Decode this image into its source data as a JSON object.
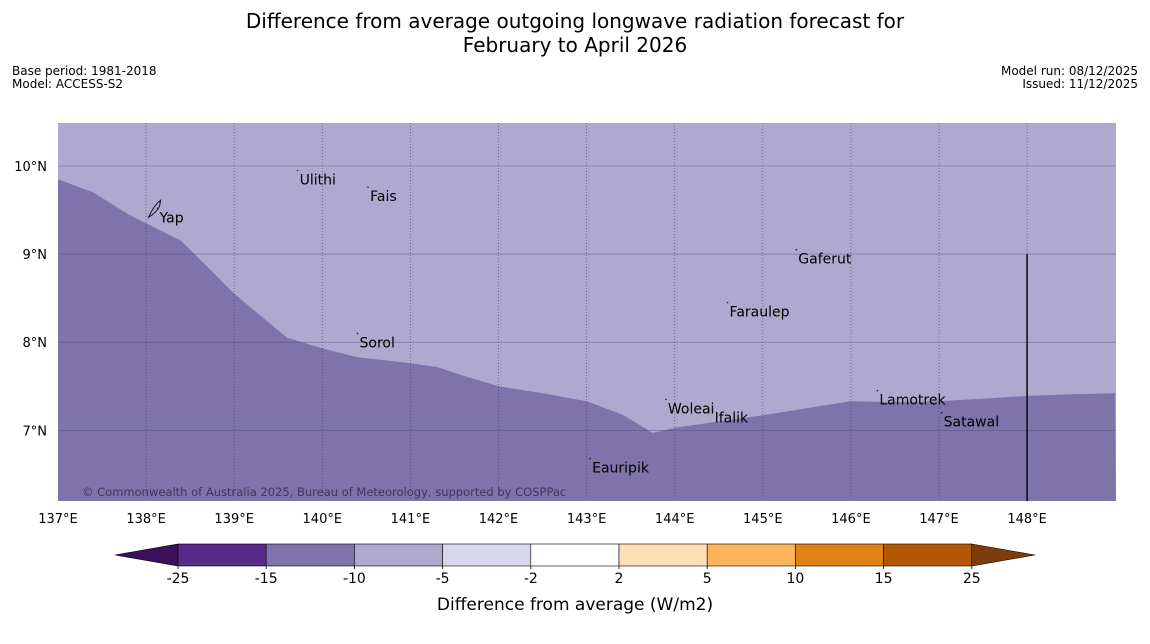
{
  "title": {
    "line1": "Difference from average outgoing longwave radiation forecast for",
    "line2": "February to April 2026"
  },
  "meta_left": {
    "base_period": "Base period: 1981-2018",
    "model": "Model: ACCESS-S2"
  },
  "meta_right": {
    "model_run": "Model run: 08/12/2025",
    "issued": "Issued: 11/12/2025"
  },
  "map": {
    "extent": {
      "lon_min": 137,
      "lon_max": 149,
      "lat_min": 6.2,
      "lat_max": 10.5
    },
    "lon_ticks": [
      "137°E",
      "138°E",
      "139°E",
      "140°E",
      "141°E",
      "142°E",
      "143°E",
      "144°E",
      "145°E",
      "146°E",
      "147°E",
      "148°E"
    ],
    "lat_ticks": [
      "7°N",
      "8°N",
      "9°N",
      "10°N"
    ],
    "colors": {
      "band_-10_-5": "#afa9cf",
      "band_-15_-10": "#7f73ab"
    },
    "boundary": [
      [
        137,
        9.85
      ],
      [
        137.4,
        9.7
      ],
      [
        137.8,
        9.45
      ],
      [
        138.4,
        9.15
      ],
      [
        138.7,
        8.85
      ],
      [
        139,
        8.55
      ],
      [
        139.3,
        8.3
      ],
      [
        139.6,
        8.05
      ],
      [
        140,
        7.93
      ],
      [
        140.4,
        7.83
      ],
      [
        141,
        7.76
      ],
      [
        141.3,
        7.72
      ],
      [
        141.6,
        7.62
      ],
      [
        142,
        7.5
      ],
      [
        142.5,
        7.42
      ],
      [
        143,
        7.33
      ],
      [
        143.4,
        7.18
      ],
      [
        143.75,
        6.97
      ],
      [
        144,
        7.03
      ],
      [
        144.5,
        7.1
      ],
      [
        145,
        7.17
      ],
      [
        145.5,
        7.25
      ],
      [
        146,
        7.33
      ],
      [
        146.5,
        7.32
      ],
      [
        147,
        7.33
      ],
      [
        147.5,
        7.36
      ],
      [
        148,
        7.39
      ],
      [
        148.5,
        7.41
      ],
      [
        149,
        7.42
      ]
    ],
    "reference_line": {
      "lon": 148,
      "lat_top": 9.0,
      "lat_bottom": 6.2
    },
    "places": [
      {
        "name": "Yap",
        "lon": 138.13,
        "lat": 9.52
      },
      {
        "name": "Ulithi",
        "lon": 139.72,
        "lat": 9.95
      },
      {
        "name": "Fais",
        "lon": 140.52,
        "lat": 9.76
      },
      {
        "name": "Gaferut",
        "lon": 145.38,
        "lat": 9.05
      },
      {
        "name": "Faraulep",
        "lon": 144.6,
        "lat": 8.45
      },
      {
        "name": "Sorol",
        "lon": 140.4,
        "lat": 8.1
      },
      {
        "name": "Woleai",
        "lon": 143.9,
        "lat": 7.35
      },
      {
        "name": "Ifalik",
        "lon": 144.43,
        "lat": 7.25
      },
      {
        "name": "Lamotrek",
        "lon": 146.3,
        "lat": 7.45
      },
      {
        "name": "Satawal",
        "lon": 147.03,
        "lat": 7.2
      },
      {
        "name": "Eauripik",
        "lon": 143.04,
        "lat": 6.68
      }
    ],
    "copyright": "© Commonwealth of Australia 2025, Bureau of Meteorology, supported by COSPPac"
  },
  "colorbar": {
    "colors": [
      "#3b0f5a",
      "#5a2a8a",
      "#7f73ab",
      "#afa9cf",
      "#d8d8ea",
      "#ffffff",
      "#fde0b5",
      "#fbb35c",
      "#e08214",
      "#b35806",
      "#7f3b08"
    ],
    "tick_labels": [
      "-25",
      "-15",
      "-10",
      "-5",
      "-2",
      "2",
      "5",
      "10",
      "15",
      "25"
    ],
    "label": "Difference from average (W/m2)"
  }
}
